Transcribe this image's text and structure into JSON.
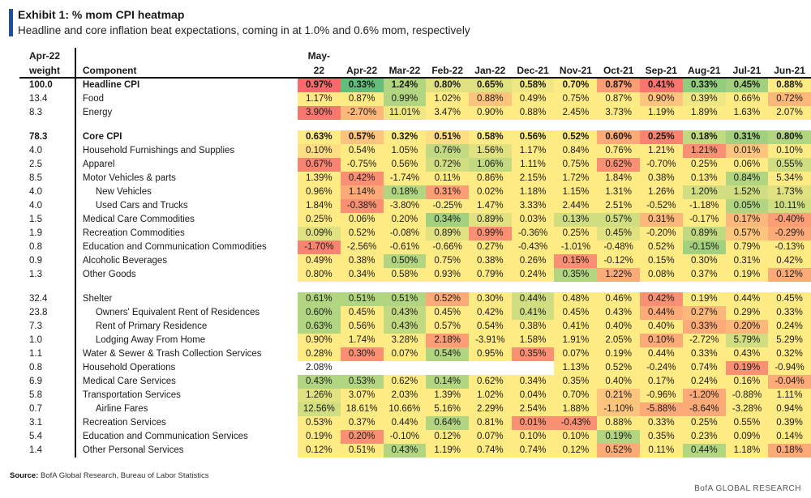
{
  "title": "Exhibit 1: % mom CPI heatmap",
  "subtitle": "Headline and core inflation beat expectations, coming in at 1.0% and 0.6% mom, respectively",
  "source_label": "Source:",
  "source_text": "BofA Global Research, Bureau of Labor Statistics",
  "brand": "BofA GLOBAL RESEARCH",
  "colors": {
    "red": "#f8696b",
    "yellow": "#ffeb84",
    "green": "#63be7b",
    "blank": "#ffffff"
  },
  "chart_data": {
    "type": "heatmap",
    "title": "Exhibit 1: % mom CPI heatmap",
    "weight_header": [
      "Apr-22",
      "weight"
    ],
    "component_header": "Component",
    "columns": [
      [
        "May-",
        "22"
      ],
      [
        "",
        "Apr-22"
      ],
      [
        "",
        "Mar-22"
      ],
      [
        "",
        "Feb-22"
      ],
      [
        "",
        "Jan-22"
      ],
      [
        "",
        "Dec-21"
      ],
      [
        "",
        "Nov-21"
      ],
      [
        "",
        "Oct-21"
      ],
      [
        "",
        "Sep-21"
      ],
      [
        "",
        "Aug-21"
      ],
      [
        "",
        "Jul-21"
      ],
      [
        "",
        "Jun-21"
      ]
    ],
    "rows": [
      {
        "weight": "100.0",
        "label": "Headline CPI",
        "bold": true,
        "values": [
          "0.97%",
          "0.33%",
          "1.24%",
          "0.80%",
          "0.65%",
          "0.58%",
          "0.70%",
          "0.87%",
          "0.41%",
          "0.33%",
          "0.45%",
          "0.88%"
        ],
        "shade": [
          -1,
          1,
          0.5,
          0.2,
          0.2,
          0.1,
          0,
          -0.6,
          -0.9,
          0.7,
          0.6,
          0
        ]
      },
      {
        "weight": "13.4",
        "label": "Food",
        "values": [
          "1.17%",
          "0.87%",
          "0.99%",
          "1.02%",
          "0.88%",
          "0.49%",
          "0.75%",
          "0.87%",
          "0.90%",
          "0.39%",
          "0.66%",
          "0.72%"
        ],
        "shade": [
          0,
          0,
          0.5,
          0,
          -0.3,
          0,
          0,
          0,
          -0.3,
          0.1,
          0,
          -0.4
        ]
      },
      {
        "weight": "8.3",
        "label": "Energy",
        "values": [
          "3.90%",
          "-2.70%",
          "11.01%",
          "3.47%",
          "0.90%",
          "0.88%",
          "2.45%",
          "3.73%",
          "1.19%",
          "1.89%",
          "1.63%",
          "2.07%"
        ],
        "shade": [
          -0.9,
          -0.4,
          0.1,
          0,
          0,
          0,
          0,
          0,
          0,
          0,
          0,
          0
        ]
      },
      {
        "spacer": true
      },
      {
        "weight": "78.3",
        "label": "Core CPI",
        "bold": true,
        "values": [
          "0.63%",
          "0.57%",
          "0.32%",
          "0.51%",
          "0.58%",
          "0.56%",
          "0.52%",
          "0.60%",
          "0.25%",
          "0.18%",
          "0.31%",
          "0.80%"
        ],
        "shade": [
          0,
          -0.3,
          0,
          -0.1,
          0,
          0,
          0,
          -0.5,
          -0.8,
          0.4,
          0.6,
          0.5
        ]
      },
      {
        "weight": "4.0",
        "label": "Household Furnishings and Supplies",
        "values": [
          "0.10%",
          "0.54%",
          "1.05%",
          "0.76%",
          "1.56%",
          "1.17%",
          "0.84%",
          "0.76%",
          "1.21%",
          "1.21%",
          "0.01%",
          "0.10%"
        ],
        "shade": [
          -0.1,
          0,
          0,
          0.4,
          0.2,
          0,
          0,
          0,
          0,
          -0.7,
          -0.3,
          0
        ]
      },
      {
        "weight": "2.5",
        "label": "Apparel",
        "values": [
          "0.67%",
          "-0.75%",
          "0.56%",
          "0.72%",
          "1.06%",
          "1.11%",
          "0.75%",
          "0.62%",
          "-0.70%",
          "0.25%",
          "0.06%",
          "0.55%"
        ],
        "shade": [
          -0.8,
          0,
          0,
          0.3,
          0.4,
          0,
          0,
          -0.7,
          0,
          0,
          0,
          0.3
        ]
      },
      {
        "weight": "8.5",
        "label": "Motor Vehicles & parts",
        "values": [
          "1.39%",
          "0.42%",
          "-1.74%",
          "0.11%",
          "0.86%",
          "2.15%",
          "1.72%",
          "1.84%",
          "0.38%",
          "0.13%",
          "0.84%",
          "5.34%"
        ],
        "shade": [
          0,
          -0.7,
          0,
          0,
          0,
          0,
          0,
          0,
          0,
          0,
          0.5,
          0
        ]
      },
      {
        "weight": "4.0",
        "label": "New Vehicles",
        "sub": true,
        "values": [
          "0.96%",
          "1.14%",
          "0.18%",
          "0.31%",
          "0.02%",
          "1.18%",
          "1.15%",
          "1.31%",
          "1.26%",
          "1.20%",
          "1.52%",
          "1.73%"
        ],
        "shade": [
          0,
          -0.5,
          0.5,
          -0.6,
          0,
          0,
          0,
          0,
          0,
          0.3,
          0.3,
          0.2
        ]
      },
      {
        "weight": "4.0",
        "label": "Used Cars and Trucks",
        "sub": true,
        "values": [
          "1.84%",
          "-0.38%",
          "-3.80%",
          "-0.25%",
          "1.47%",
          "3.33%",
          "2.44%",
          "2.51%",
          "-0.52%",
          "-1.18%",
          "0.05%",
          "10.11%"
        ],
        "shade": [
          0,
          -0.7,
          0,
          0,
          0,
          0,
          0,
          0,
          0,
          0,
          0.5,
          0.3
        ]
      },
      {
        "weight": "1.5",
        "label": "Medical Care Commodities",
        "values": [
          "0.25%",
          "0.06%",
          "0.20%",
          "0.34%",
          "0.89%",
          "0.03%",
          "0.13%",
          "0.57%",
          "0.31%",
          "-0.17%",
          "0.17%",
          "-0.40%"
        ],
        "shade": [
          0,
          0,
          0,
          0.6,
          0.2,
          0,
          0.3,
          0.3,
          -0.4,
          0,
          -0.4,
          -0.6
        ]
      },
      {
        "weight": "1.9",
        "label": "Recreation Commodities",
        "values": [
          "0.09%",
          "0.52%",
          "-0.08%",
          "0.89%",
          "0.99%",
          "-0.36%",
          "0.25%",
          "0.45%",
          "-0.20%",
          "0.89%",
          "0.57%",
          "-0.29%"
        ],
        "shade": [
          0.2,
          0,
          0,
          0.2,
          -0.7,
          0,
          0,
          0.2,
          0,
          0.4,
          -0.3,
          -0.5
        ]
      },
      {
        "weight": "0.8",
        "label": "Education and Communication Commodities",
        "values": [
          "-1.70%",
          "-2.56%",
          "-0.61%",
          "-0.66%",
          "0.27%",
          "-0.43%",
          "-1.01%",
          "-0.48%",
          "0.52%",
          "-0.15%",
          "0.79%",
          "-0.13%"
        ],
        "shade": [
          -0.8,
          0,
          0,
          0,
          0,
          0,
          0,
          0,
          0,
          0.6,
          0,
          0
        ]
      },
      {
        "weight": "0.9",
        "label": "Alcoholic Beverages",
        "values": [
          "0.49%",
          "0.38%",
          "0.50%",
          "0.75%",
          "0.38%",
          "0.26%",
          "0.15%",
          "-0.12%",
          "0.15%",
          "0.30%",
          "0.31%",
          "0.42%"
        ],
        "shade": [
          0,
          0,
          0.5,
          0,
          0,
          0,
          -0.7,
          0,
          0,
          0,
          0,
          0
        ]
      },
      {
        "weight": "1.3",
        "label": "Other Goods",
        "values": [
          "0.80%",
          "0.34%",
          "0.58%",
          "0.93%",
          "0.79%",
          "0.24%",
          "0.35%",
          "1.22%",
          "0.08%",
          "0.37%",
          "0.19%",
          "0.12%"
        ],
        "shade": [
          0,
          0,
          0,
          0,
          0,
          0,
          0.5,
          -0.5,
          0,
          0,
          0,
          -0.5
        ]
      },
      {
        "spacer": true
      },
      {
        "weight": "32.4",
        "label": "Shelter",
        "values": [
          "0.61%",
          "0.51%",
          "0.51%",
          "0.52%",
          "0.30%",
          "0.44%",
          "0.48%",
          "0.46%",
          "0.42%",
          "0.19%",
          "0.44%",
          "0.45%"
        ],
        "shade": [
          0.5,
          0.5,
          0.5,
          -0.5,
          0,
          0.3,
          0,
          0,
          -0.7,
          0,
          0,
          0
        ]
      },
      {
        "weight": "23.8",
        "label": "Owners' Equivalent Rent of Residences",
        "sub": true,
        "values": [
          "0.60%",
          "0.45%",
          "0.43%",
          "0.45%",
          "0.42%",
          "0.41%",
          "0.45%",
          "0.43%",
          "0.44%",
          "0.27%",
          "0.29%",
          "0.33%"
        ],
        "shade": [
          0.5,
          0,
          0.4,
          0,
          0,
          0.3,
          0,
          0,
          -0.5,
          -0.4,
          0,
          0
        ]
      },
      {
        "weight": "7.3",
        "label": "Rent of Primary Residence",
        "sub": true,
        "values": [
          "0.63%",
          "0.56%",
          "0.43%",
          "0.57%",
          "0.54%",
          "0.38%",
          "0.41%",
          "0.40%",
          "0.40%",
          "0.33%",
          "0.20%",
          "0.24%"
        ],
        "shade": [
          0.5,
          0,
          0.4,
          0,
          0,
          0,
          0,
          0,
          0,
          -0.5,
          -0.4,
          0
        ]
      },
      {
        "weight": "1.0",
        "label": "Lodging Away From Home",
        "sub": true,
        "values": [
          "0.90%",
          "1.74%",
          "3.28%",
          "2.18%",
          "-3.91%",
          "1.58%",
          "1.91%",
          "2.05%",
          "0.10%",
          "-2.72%",
          "5.79%",
          "5.29%"
        ],
        "shade": [
          0,
          0,
          0,
          -0.6,
          0,
          0,
          0,
          0,
          -0.5,
          0,
          0.3,
          0
        ]
      },
      {
        "weight": "1.1",
        "label": "Water & Sewer & Trash Collection Services",
        "values": [
          "0.28%",
          "0.30%",
          "0.07%",
          "0.54%",
          "0.95%",
          "0.35%",
          "0.07%",
          "0.19%",
          "0.44%",
          "0.33%",
          "0.43%",
          "0.32%"
        ],
        "shade": [
          0,
          -0.7,
          0,
          0.5,
          0,
          -0.7,
          0,
          0,
          0,
          0,
          0,
          0
        ]
      },
      {
        "weight": "0.8",
        "label": "Household Operations",
        "values": [
          "2.08%",
          "",
          "",
          "",
          "",
          "",
          "1.13%",
          "0.52%",
          "-0.24%",
          "0.74%",
          "0.19%",
          "-0.94%"
        ],
        "shade": [
          9,
          9,
          9,
          9,
          9,
          9,
          0,
          0,
          0,
          0,
          -0.7,
          0
        ]
      },
      {
        "weight": "6.9",
        "label": "Medical Care Services",
        "values": [
          "0.43%",
          "0.53%",
          "0.62%",
          "0.14%",
          "0.62%",
          "0.34%",
          "0.35%",
          "0.40%",
          "0.17%",
          "0.24%",
          "0.16%",
          "-0.04%"
        ],
        "shade": [
          0.5,
          0.5,
          0,
          0.5,
          0,
          0,
          0,
          0,
          0,
          0,
          0,
          -0.5
        ]
      },
      {
        "weight": "5.8",
        "label": "Transportation Services",
        "sub": false,
        "values": [
          "1.26%",
          "3.07%",
          "2.03%",
          "1.39%",
          "1.02%",
          "0.04%",
          "0.70%",
          "0.21%",
          "-0.96%",
          "-1.20%",
          "-0.88%",
          "1.11%"
        ],
        "shade": [
          0.2,
          0,
          0,
          0,
          0,
          0,
          0,
          -0.3,
          0,
          -0.5,
          0,
          0
        ]
      },
      {
        "weight": "0.7",
        "label": "Airline Fares",
        "sub": true,
        "values": [
          "12.56%",
          "18.61%",
          "10.66%",
          "5.16%",
          "2.29%",
          "2.54%",
          "1.88%",
          "-1.10%",
          "-5.88%",
          "-8.64%",
          "-3.28%",
          "0.94%"
        ],
        "shade": [
          0.3,
          0,
          0,
          0,
          0,
          0,
          0,
          -0.3,
          -0.5,
          -0.5,
          0,
          0
        ]
      },
      {
        "weight": "3.1",
        "label": "Recreation Services",
        "values": [
          "0.53%",
          "0.37%",
          "0.44%",
          "0.64%",
          "0.81%",
          "0.01%",
          "-0.43%",
          "0.88%",
          "0.33%",
          "0.25%",
          "0.55%",
          "0.39%"
        ],
        "shade": [
          0,
          0,
          0,
          0.5,
          0,
          -0.7,
          -0.7,
          0,
          0,
          0,
          0,
          0
        ]
      },
      {
        "weight": "5.4",
        "label": "Education and Communication Services",
        "values": [
          "0.19%",
          "0.20%",
          "-0.10%",
          "0.12%",
          "0.07%",
          "0.10%",
          "0.10%",
          "0.19%",
          "0.35%",
          "0.23%",
          "0.09%",
          "0.14%"
        ],
        "shade": [
          0,
          -0.7,
          0,
          0,
          0,
          0,
          0,
          0.5,
          0,
          0,
          0,
          0
        ]
      },
      {
        "weight": "1.4",
        "label": "Other Personal Services",
        "values": [
          "0.12%",
          "0.51%",
          "0.43%",
          "1.19%",
          "0.74%",
          "0.74%",
          "0.12%",
          "0.52%",
          "0.11%",
          "0.44%",
          "1.18%",
          "0.18%"
        ],
        "shade": [
          0,
          0,
          0.5,
          0,
          0,
          0,
          0,
          -0.5,
          0,
          0.5,
          0,
          -0.5
        ]
      }
    ]
  }
}
